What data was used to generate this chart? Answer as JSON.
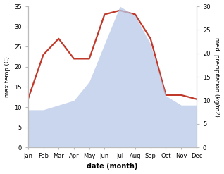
{
  "months": [
    "Jan",
    "Feb",
    "Mar",
    "Apr",
    "May",
    "Jun",
    "Jul",
    "Aug",
    "Sep",
    "Oct",
    "Nov",
    "Dec"
  ],
  "temperature": [
    12,
    23,
    27,
    22,
    22,
    33,
    34,
    33,
    27,
    13,
    13,
    12
  ],
  "precipitation": [
    8,
    8,
    9,
    10,
    14,
    22,
    30,
    28,
    22,
    11,
    9,
    9
  ],
  "temp_color": "#c0392b",
  "precip_color": "#b8c9e8",
  "precip_edge_color": "none",
  "precip_fill_alpha": 0.75,
  "temp_ylim": [
    0,
    35
  ],
  "precip_ylim": [
    0,
    30
  ],
  "temp_yticks": [
    0,
    5,
    10,
    15,
    20,
    25,
    30,
    35
  ],
  "precip_yticks": [
    0,
    5,
    10,
    15,
    20,
    25,
    30
  ],
  "ylabel_left": "max temp (C)",
  "ylabel_right": "med. precipitation (kg/m2)",
  "xlabel": "date (month)",
  "linewidth": 1.6,
  "spine_color": "#bbbbbb"
}
